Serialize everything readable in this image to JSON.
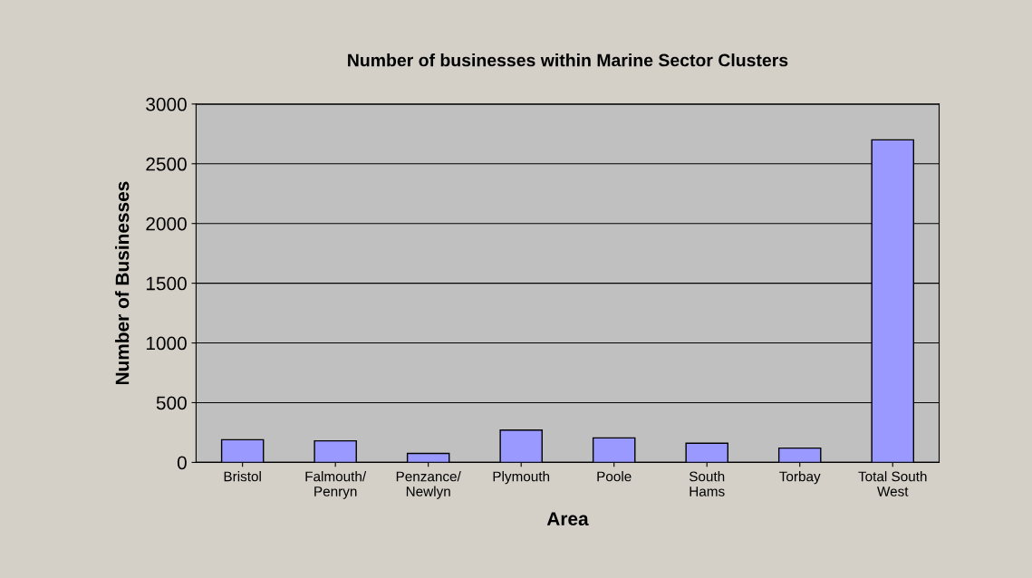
{
  "chart_data": {
    "type": "bar",
    "title": "Number of businesses within Marine Sector Clusters",
    "xlabel": "Area",
    "ylabel": "Number of Businesses",
    "categories": [
      "Bristol",
      "Falmouth/\nPenryn",
      "Penzance/\nNewlyn",
      "Plymouth",
      "Poole",
      "South\nHams",
      "Torbay",
      "Total South\nWest"
    ],
    "values": [
      190,
      180,
      75,
      270,
      205,
      160,
      120,
      2700
    ],
    "color": "#9999ff",
    "ylim": [
      0,
      3000
    ],
    "yticks": [
      0,
      500,
      1000,
      1500,
      2000,
      2500,
      3000
    ],
    "grid": "y"
  }
}
